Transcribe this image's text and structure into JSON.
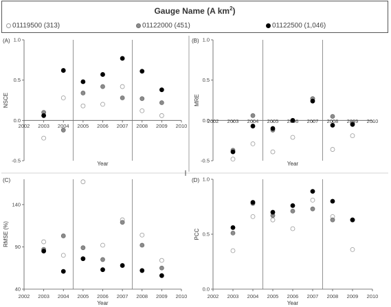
{
  "legend": {
    "title_main": "Gauge Name (A km",
    "title_sup": "2",
    "title_end": ")",
    "items": [
      {
        "label": "01119500 (313)",
        "fill": "#ffffff",
        "stroke": "#9a9a9a"
      },
      {
        "label": "01122000 (451)",
        "fill": "#8c8c8c",
        "stroke": "#6e6e6e"
      },
      {
        "label": "01122500 (1,046)",
        "fill": "#000000",
        "stroke": "#000000"
      }
    ]
  },
  "chart_data": [
    {
      "type": "scatter",
      "panel": "(A)",
      "title": "",
      "xlabel": "Year",
      "ylabel": "NSCE",
      "xlim": [
        2002,
        2010
      ],
      "ylim": [
        -0.5,
        1.0
      ],
      "xticks": [
        "2002",
        "2003",
        "2004",
        "2005",
        "2006",
        "2007",
        "2008",
        "2009",
        "2010"
      ],
      "yticks": [
        "-0.5",
        "0.0",
        "0.5",
        "1.0"
      ],
      "series": [
        {
          "name": "01119500 (313)",
          "x": [
            2003,
            2004,
            2005,
            2006,
            2007,
            2008,
            2009
          ],
          "y": [
            -0.22,
            0.28,
            0.18,
            0.2,
            0.42,
            0.12,
            0.06
          ]
        },
        {
          "name": "01122000 (451)",
          "x": [
            2003,
            2004,
            2005,
            2006,
            2007,
            2008,
            2009
          ],
          "y": [
            0.1,
            -0.12,
            0.34,
            0.42,
            0.28,
            0.27,
            0.22
          ]
        },
        {
          "name": "01122500 (1,046)",
          "x": [
            2003,
            2004,
            2005,
            2006,
            2007,
            2008,
            2009
          ],
          "y": [
            0.06,
            0.62,
            0.48,
            0.57,
            0.77,
            0.61,
            0.38
          ]
        }
      ]
    },
    {
      "type": "scatter",
      "panel": "(B)",
      "title": "",
      "xlabel": "Year",
      "ylabel": "MRE",
      "xlim": [
        2002,
        2010
      ],
      "ylim": [
        -0.5,
        1.0
      ],
      "xticks": [
        "2002",
        "2003",
        "2004",
        "2005",
        "2006",
        "2007",
        "2008",
        "2009",
        "2010"
      ],
      "yticks": [
        "-0.5",
        "0.0",
        "0.5",
        "1.0"
      ],
      "series": [
        {
          "name": "01119500 (313)",
          "x": [
            2003,
            2004,
            2005,
            2006,
            2007,
            2008,
            2009
          ],
          "y": [
            -0.48,
            -0.29,
            -0.39,
            -0.21,
            0.27,
            -0.36,
            -0.19
          ]
        },
        {
          "name": "01122000 (451)",
          "x": [
            2003,
            2004,
            2005,
            2006,
            2007,
            2008,
            2009
          ],
          "y": [
            -0.37,
            0.06,
            -0.12,
            0.0,
            0.27,
            0.05,
            -0.03
          ]
        },
        {
          "name": "01122500 (1,046)",
          "x": [
            2003,
            2004,
            2005,
            2006,
            2007,
            2008,
            2009
          ],
          "y": [
            -0.39,
            -0.07,
            -0.1,
            0.0,
            0.24,
            -0.06,
            -0.05
          ]
        }
      ]
    },
    {
      "type": "scatter",
      "panel": "(C)",
      "title": "",
      "xlabel": "Year",
      "ylabel": "RMSE (%)",
      "xlim": [
        2002,
        2010
      ],
      "ylim": [
        40,
        170
      ],
      "xticks": [
        "2002",
        "2003",
        "2004",
        "2005",
        "2006",
        "2007",
        "2008",
        "2009",
        "2010"
      ],
      "yticks": [
        "40",
        "90",
        "140"
      ],
      "series": [
        {
          "name": "01119500 (313)",
          "x": [
            2003,
            2004,
            2005,
            2006,
            2007,
            2008,
            2009
          ],
          "y": [
            96,
            80,
            167,
            92,
            122,
            104,
            74
          ]
        },
        {
          "name": "01122000 (451)",
          "x": [
            2003,
            2004,
            2005,
            2006,
            2007,
            2008,
            2009
          ],
          "y": [
            87,
            103,
            89,
            75,
            119,
            92,
            65
          ]
        },
        {
          "name": "01122500 (1,046)",
          "x": [
            2003,
            2004,
            2005,
            2006,
            2007,
            2008,
            2009
          ],
          "y": [
            85,
            61,
            76,
            63,
            68,
            62,
            56
          ]
        }
      ]
    },
    {
      "type": "scatter",
      "panel": "(D)",
      "title": "",
      "xlabel": "Year",
      "ylabel": "PCC",
      "xlim": [
        2002,
        2010
      ],
      "ylim": [
        0.0,
        1.0
      ],
      "xticks": [
        "2002",
        "2003",
        "2004",
        "2005",
        "2006",
        "2007",
        "2008",
        "2009",
        "2010"
      ],
      "yticks": [
        "0.0",
        "0.5",
        "1.0"
      ],
      "series": [
        {
          "name": "01119500 (313)",
          "x": [
            2003,
            2004,
            2005,
            2006,
            2007,
            2008,
            2009
          ],
          "y": [
            0.35,
            0.66,
            0.63,
            0.55,
            0.81,
            0.66,
            0.36
          ]
        },
        {
          "name": "01122000 (451)",
          "x": [
            2003,
            2004,
            2005,
            2006,
            2007,
            2008,
            2009
          ],
          "y": [
            0.51,
            0.78,
            0.67,
            0.71,
            0.73,
            0.63,
            0.63
          ]
        },
        {
          "name": "01122500 (1,046)",
          "x": [
            2003,
            2004,
            2005,
            2006,
            2007,
            2008,
            2009
          ],
          "y": [
            0.56,
            0.79,
            0.7,
            0.76,
            0.89,
            0.8,
            0.63
          ]
        }
      ]
    }
  ]
}
